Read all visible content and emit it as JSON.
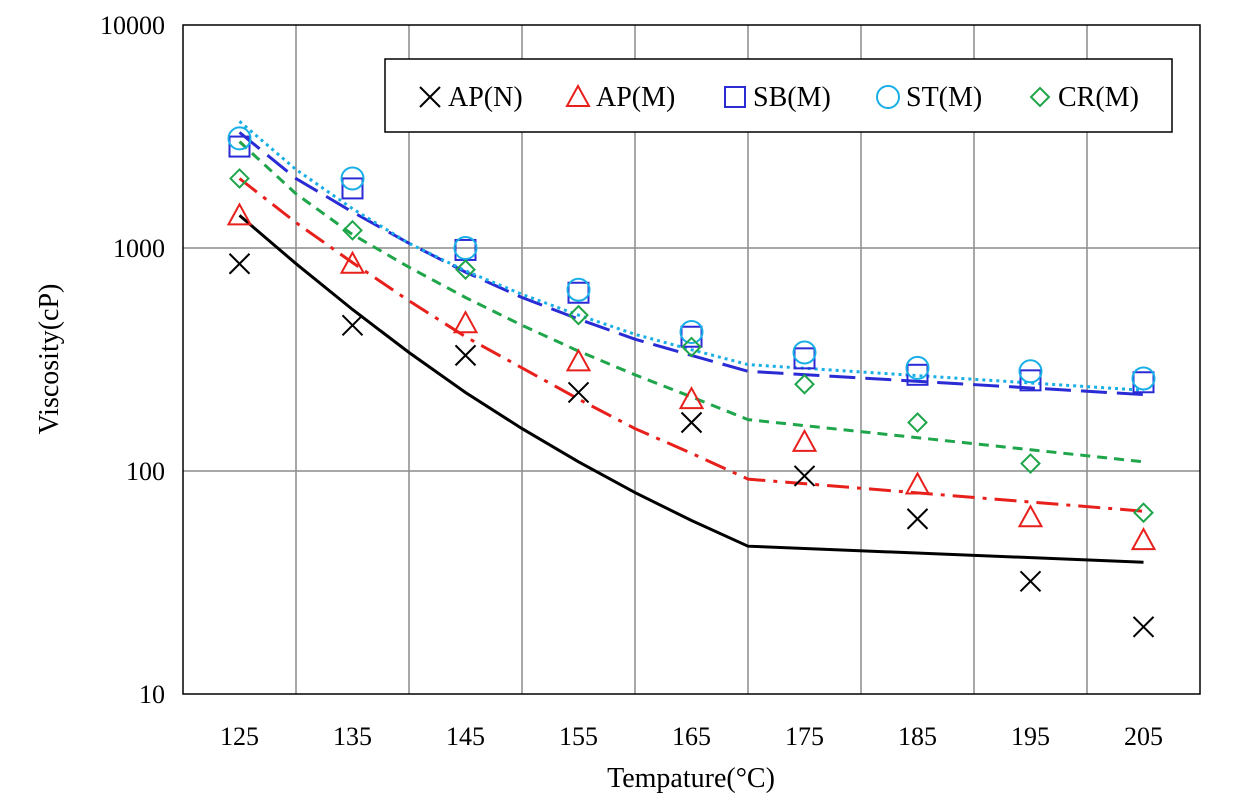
{
  "chart_data": {
    "type": "scatter",
    "title": "",
    "xlabel": "Tempature(°C)",
    "ylabel": "Viscosity(cP)",
    "yscale": "log",
    "xlim": [
      120,
      210
    ],
    "ylim": [
      10,
      10000
    ],
    "x_ticks": [
      "125",
      "135",
      "145",
      "155",
      "165",
      "175",
      "185",
      "195",
      "205"
    ],
    "y_ticks": [
      "10",
      "100",
      "1000",
      "10000"
    ],
    "legend_position": "top-right",
    "x": [
      125,
      135,
      145,
      155,
      165,
      175,
      185,
      195,
      205
    ],
    "series": [
      {
        "name": "AP(N)",
        "marker": "x",
        "color": "#000000",
        "line_style": "solid",
        "values": [
          850,
          450,
          330,
          225,
          165,
          95,
          61,
          32,
          20
        ],
        "fit": [
          1400,
          850,
          530,
          340,
          225,
          155,
          110,
          80,
          60,
          46,
          39
        ]
      },
      {
        "name": "AP(M)",
        "marker": "triangle",
        "color": "#e8201c",
        "line_style": "dash-dot",
        "values": [
          1400,
          850,
          460,
          310,
          210,
          135,
          87,
          62,
          49
        ],
        "fit": [
          2050,
          1300,
          860,
          580,
          400,
          290,
          210,
          155,
          120,
          92,
          66
        ]
      },
      {
        "name": "SB(M)",
        "marker": "square",
        "color": "#2b2bd6",
        "line_style": "long-dash",
        "values": [
          2850,
          1850,
          980,
          630,
          400,
          320,
          270,
          255,
          250
        ],
        "fit": [
          3300,
          2050,
          1450,
          1050,
          780,
          600,
          480,
          390,
          330,
          280,
          220
        ]
      },
      {
        "name": "ST(M)",
        "marker": "circle",
        "color": "#18aee6",
        "line_style": "dotted",
        "values": [
          3100,
          2050,
          1000,
          650,
          420,
          340,
          290,
          280,
          260
        ],
        "fit": [
          3700,
          2250,
          1500,
          1050,
          790,
          620,
          500,
          410,
          350,
          300,
          230
        ]
      },
      {
        "name": "CR(M)",
        "marker": "diamond",
        "color": "#1fa54a",
        "line_style": "dashed",
        "values": [
          2050,
          1200,
          800,
          500,
          360,
          245,
          165,
          108,
          65
        ],
        "fit": [
          3000,
          1750,
          1150,
          820,
          600,
          450,
          345,
          270,
          215,
          170,
          110
        ]
      }
    ],
    "fit_x": [
      125,
      130,
      135,
      140,
      145,
      150,
      155,
      160,
      165,
      170,
      205
    ]
  }
}
